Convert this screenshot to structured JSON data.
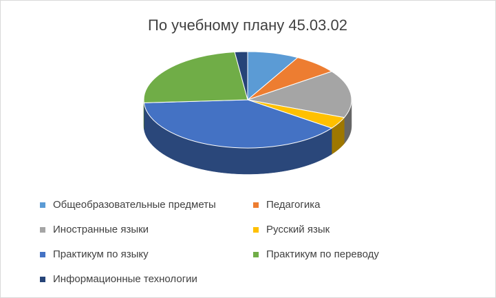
{
  "chart_data": {
    "type": "pie3d",
    "title": "По учебному плану 45.03.02",
    "categories": [
      "Общеобразовательные предметы",
      "Педагогика",
      "Иностранные языки",
      "Русский язык",
      "Практикум по языку",
      "Практикум по переводу",
      "Информационные технологии"
    ],
    "values": [
      8,
      7,
      16,
      4,
      39,
      24,
      2
    ],
    "colors": [
      "#5b9bd5",
      "#ed7d31",
      "#a5a5a5",
      "#ffc000",
      "#4472c4",
      "#70ad47",
      "#264478"
    ],
    "legend": "bottom"
  }
}
